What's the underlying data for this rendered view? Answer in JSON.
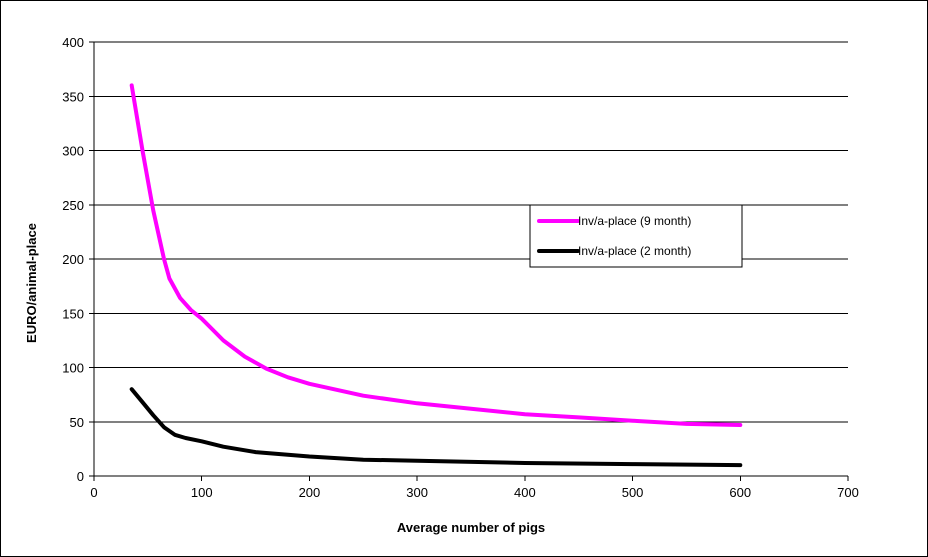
{
  "chart_data": {
    "type": "line",
    "title": "",
    "xlabel": "Average number of pigs",
    "ylabel": "EURO/animal-place",
    "xlim": [
      0,
      700
    ],
    "ylim": [
      0,
      400
    ],
    "xticks": [
      0,
      100,
      200,
      300,
      400,
      500,
      600,
      700
    ],
    "yticks": [
      0,
      50,
      100,
      150,
      200,
      250,
      300,
      350,
      400
    ],
    "grid": "horizontal",
    "legend_position": "right",
    "series": [
      {
        "name": "Inv/a-place (9 month)",
        "color": "#ff00ff",
        "x": [
          35,
          45,
          55,
          65,
          70,
          80,
          90,
          100,
          110,
          120,
          140,
          160,
          180,
          200,
          250,
          300,
          350,
          400,
          450,
          500,
          550,
          600
        ],
        "y": [
          360,
          300,
          245,
          200,
          182,
          164,
          153,
          145,
          135,
          125,
          110,
          99,
          91,
          85,
          74,
          67,
          62,
          57,
          54,
          51,
          48,
          47
        ]
      },
      {
        "name": "Inv/a-place (2 month)",
        "color": "#000000",
        "x": [
          35,
          45,
          55,
          65,
          75,
          85,
          100,
          120,
          150,
          200,
          250,
          300,
          400,
          500,
          600
        ],
        "y": [
          80,
          68,
          56,
          45,
          38,
          35,
          32,
          27,
          22,
          18,
          15,
          14,
          12,
          11,
          10
        ]
      }
    ]
  }
}
